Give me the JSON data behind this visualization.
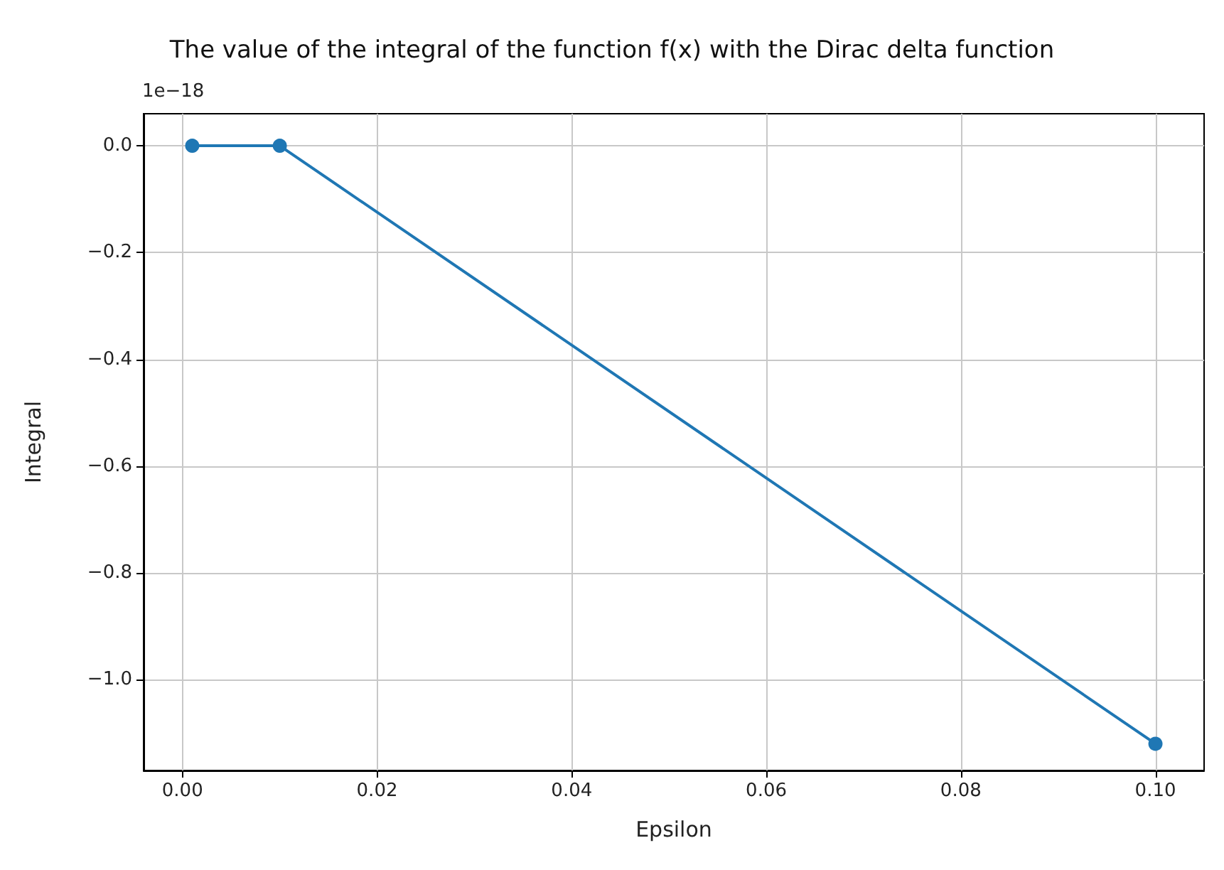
{
  "chart_data": {
    "type": "line",
    "title": "The value of the integral of the function f(x) with the Dirac delta function",
    "xlabel": "Epsilon",
    "ylabel": "Integral",
    "annotations": [
      "1e−18"
    ],
    "x": [
      0.001,
      0.01,
      0.1
    ],
    "series": [
      {
        "color": "#1f77b4",
        "values": [
          0,
          0,
          -1.12
        ]
      }
    ],
    "xlim": [
      -0.004,
      0.105
    ],
    "xticks": [
      {
        "value": 0,
        "label": "0.00"
      },
      {
        "value": 0.02,
        "label": "0.02"
      },
      {
        "value": 0.04,
        "label": "0.04"
      },
      {
        "value": 0.06,
        "label": "0.06"
      },
      {
        "value": 0.08,
        "label": "0.08"
      },
      {
        "value": 0.1,
        "label": "0.10"
      }
    ],
    "ylim": [
      -1.17,
      0.06
    ],
    "yticks": [
      {
        "value": 0,
        "label": "0.0"
      },
      {
        "value": -0.2,
        "label": "−0.2"
      },
      {
        "value": -0.4,
        "label": "−0.4"
      },
      {
        "value": -0.6,
        "label": "−0.6"
      },
      {
        "value": -0.8,
        "label": "−0.8"
      },
      {
        "value": -1.0,
        "label": "−1.0"
      }
    ],
    "grid": true,
    "marker": "circle",
    "line_style": "solid"
  }
}
